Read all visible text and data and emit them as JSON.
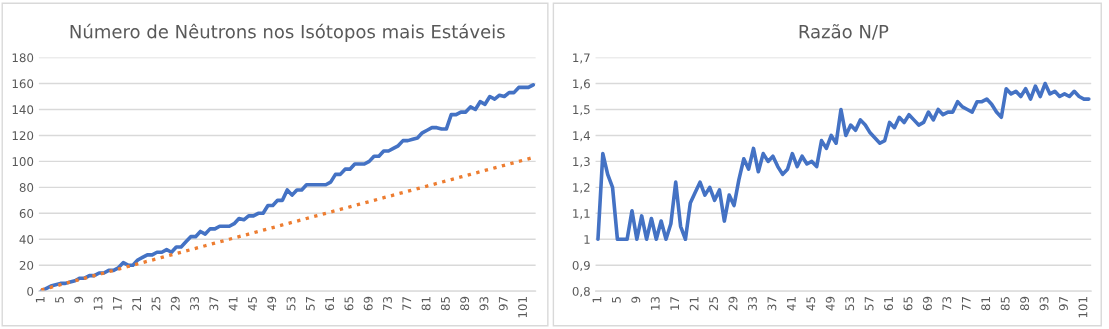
{
  "chart_data": [
    {
      "type": "line",
      "title": "Número de Nêutrons nos Isótopos mais Estáveis",
      "categories": [
        "1",
        null,
        null,
        null,
        "5",
        null,
        null,
        null,
        "9",
        null,
        null,
        null,
        "13",
        null,
        null,
        null,
        "17",
        null,
        null,
        null,
        "21",
        null,
        null,
        null,
        "25",
        null,
        null,
        null,
        "29",
        null,
        null,
        null,
        "33",
        null,
        null,
        null,
        "37",
        null,
        null,
        null,
        "41",
        null,
        null,
        null,
        "45",
        null,
        null,
        null,
        "49",
        null,
        null,
        null,
        "53",
        null,
        null,
        null,
        "57",
        null,
        null,
        null,
        "61",
        null,
        null,
        null,
        "65",
        null,
        null,
        null,
        "69",
        null,
        null,
        null,
        "73",
        null,
        null,
        null,
        "77",
        null,
        null,
        null,
        "81",
        null,
        null,
        null,
        "85",
        null,
        null,
        null,
        "89",
        null,
        null,
        null,
        "93",
        null,
        null,
        null,
        "97",
        null,
        null,
        null,
        "101",
        null,
        null
      ],
      "series": [
        {
          "color": "#4472c4",
          "line_style": "solid",
          "values": [
            0,
            2,
            4,
            5,
            6,
            6,
            7,
            8,
            10,
            10,
            12,
            12,
            14,
            14,
            16,
            16,
            18,
            22,
            20,
            20,
            24,
            26,
            28,
            28,
            30,
            30,
            32,
            30,
            34,
            34,
            38,
            42,
            42,
            46,
            44,
            48,
            48,
            50,
            50,
            50,
            52,
            56,
            55,
            58,
            58,
            60,
            60,
            66,
            66,
            70,
            70,
            78,
            74,
            78,
            78,
            82,
            82,
            82,
            82,
            82,
            84,
            90,
            90,
            94,
            94,
            98,
            98,
            98,
            100,
            104,
            104,
            108,
            108,
            110,
            112,
            116,
            116,
            117,
            118,
            122,
            124,
            126,
            126,
            125,
            125,
            136,
            136,
            138,
            138,
            142,
            140,
            146,
            144,
            150,
            148,
            151,
            150,
            153,
            153,
            157,
            157,
            157,
            159
          ]
        },
        {
          "color": "#ed7d31",
          "line_style": "dotted",
          "values": [
            1,
            2,
            3,
            4,
            5,
            6,
            7,
            8,
            9,
            10,
            11,
            12,
            13,
            14,
            15,
            16,
            17,
            18,
            19,
            20,
            21,
            22,
            23,
            24,
            25,
            26,
            27,
            28,
            29,
            30,
            31,
            32,
            33,
            34,
            35,
            36,
            37,
            38,
            39,
            40,
            41,
            42,
            43,
            44,
            45,
            46,
            47,
            48,
            49,
            50,
            51,
            52,
            53,
            54,
            55,
            56,
            57,
            58,
            59,
            60,
            61,
            62,
            63,
            64,
            65,
            66,
            67,
            68,
            69,
            70,
            71,
            72,
            73,
            74,
            75,
            76,
            77,
            78,
            79,
            80,
            81,
            82,
            83,
            84,
            85,
            86,
            87,
            88,
            89,
            90,
            91,
            92,
            93,
            94,
            95,
            96,
            97,
            98,
            99,
            100,
            101,
            102,
            103
          ]
        }
      ],
      "ylim": [
        0,
        180
      ],
      "yticks": [
        0,
        20,
        40,
        60,
        80,
        100,
        120,
        140,
        160,
        180
      ],
      "grid": "y",
      "marker": "none"
    },
    {
      "type": "line",
      "title": "Razão N/P",
      "categories": [
        "1",
        null,
        null,
        null,
        "5",
        null,
        null,
        null,
        "9",
        null,
        null,
        null,
        "13",
        null,
        null,
        null,
        "17",
        null,
        null,
        null,
        "21",
        null,
        null,
        null,
        "25",
        null,
        null,
        null,
        "29",
        null,
        null,
        null,
        "33",
        null,
        null,
        null,
        "37",
        null,
        null,
        null,
        "41",
        null,
        null,
        null,
        "45",
        null,
        null,
        null,
        "49",
        null,
        null,
        null,
        "53",
        null,
        null,
        null,
        "57",
        null,
        null,
        null,
        "61",
        null,
        null,
        null,
        "65",
        null,
        null,
        null,
        "69",
        null,
        null,
        null,
        "73",
        null,
        null,
        null,
        "77",
        null,
        null,
        null,
        "81",
        null,
        null,
        null,
        "85",
        null,
        null,
        null,
        "89",
        null,
        null,
        null,
        "93",
        null,
        null,
        null,
        "97",
        null,
        null,
        null,
        "101",
        null
      ],
      "series": [
        {
          "color": "#4472c4",
          "line_style": "solid",
          "values": [
            1.0,
            1.33,
            1.25,
            1.2,
            1.0,
            1.0,
            1.0,
            1.11,
            1.0,
            1.09,
            1.0,
            1.08,
            1.0,
            1.07,
            1.0,
            1.06,
            1.22,
            1.05,
            1.0,
            1.14,
            1.18,
            1.22,
            1.17,
            1.2,
            1.15,
            1.19,
            1.07,
            1.17,
            1.13,
            1.23,
            1.31,
            1.27,
            1.35,
            1.26,
            1.33,
            1.3,
            1.32,
            1.28,
            1.25,
            1.27,
            1.33,
            1.28,
            1.32,
            1.29,
            1.3,
            1.28,
            1.38,
            1.35,
            1.4,
            1.37,
            1.5,
            1.4,
            1.44,
            1.42,
            1.46,
            1.44,
            1.41,
            1.39,
            1.37,
            1.38,
            1.45,
            1.43,
            1.47,
            1.45,
            1.48,
            1.46,
            1.44,
            1.45,
            1.49,
            1.46,
            1.5,
            1.48,
            1.49,
            1.49,
            1.53,
            1.51,
            1.5,
            1.49,
            1.53,
            1.53,
            1.54,
            1.52,
            1.49,
            1.47,
            1.58,
            1.56,
            1.57,
            1.55,
            1.58,
            1.54,
            1.59,
            1.55,
            1.6,
            1.56,
            1.57,
            1.55,
            1.56,
            1.55,
            1.57,
            1.55,
            1.54,
            1.54
          ]
        }
      ],
      "ylim": [
        0.8,
        1.7
      ],
      "yticks": [
        {
          "value": 0.8,
          "label": "0,8"
        },
        {
          "value": 0.9,
          "label": "0,9"
        },
        {
          "value": 1,
          "label": "1"
        },
        {
          "value": 1.1,
          "label": "1,1"
        },
        {
          "value": 1.2,
          "label": "1,2"
        },
        {
          "value": 1.3,
          "label": "1,3"
        },
        {
          "value": 1.4,
          "label": "1,4"
        },
        {
          "value": 1.5,
          "label": "1,5"
        },
        {
          "value": 1.6,
          "label": "1,6"
        },
        {
          "value": 1.7,
          "label": "1,7"
        }
      ],
      "grid": "y",
      "marker": "none"
    }
  ]
}
